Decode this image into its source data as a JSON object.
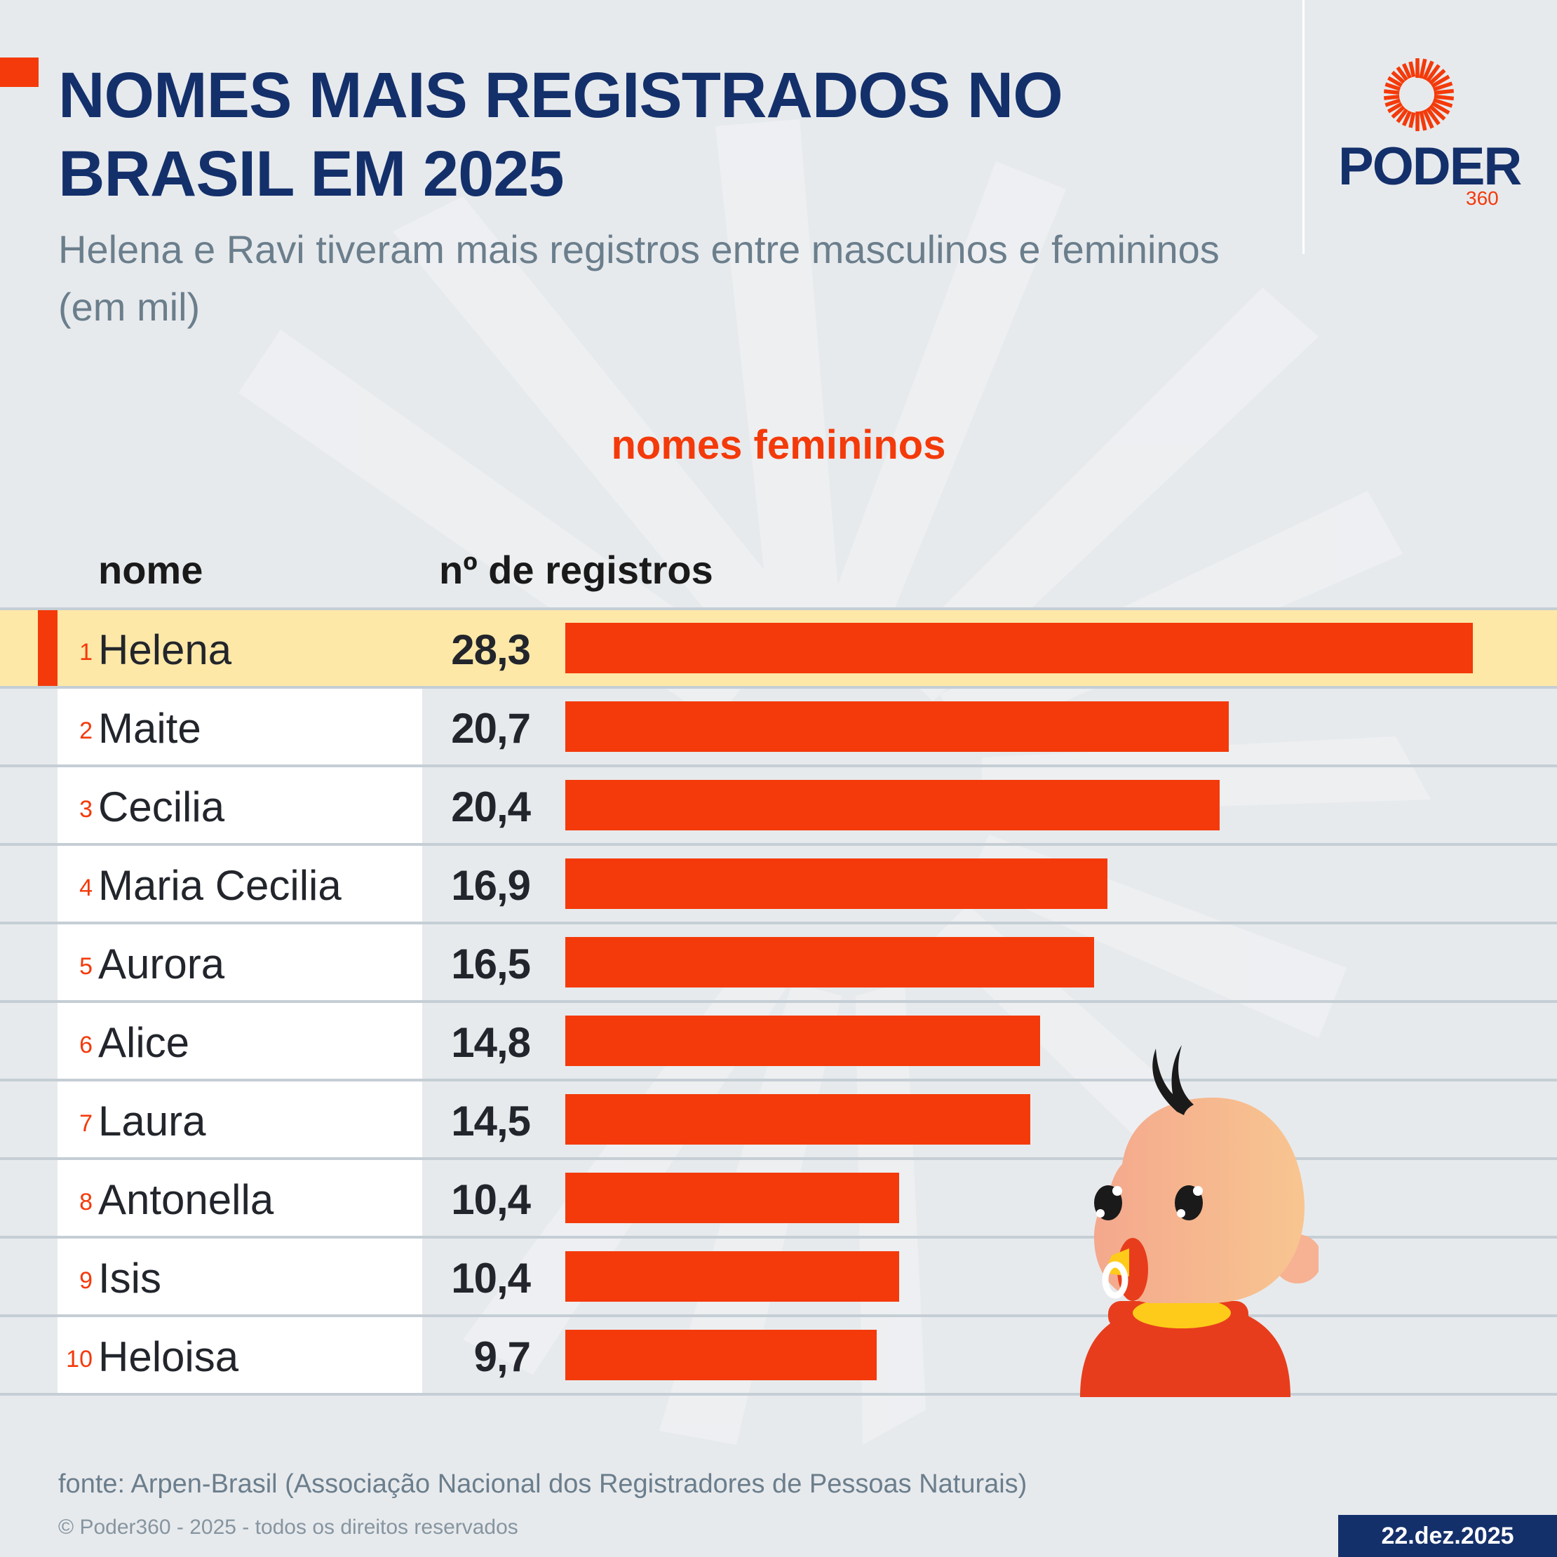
{
  "header": {
    "title": "NOMES MAIS REGISTRADOS NO BRASIL EM 2025",
    "subtitle": "Helena e Ravi tiveram mais registros entre masculinos e femininos (em mil)"
  },
  "logo": {
    "word": "PODER",
    "number": "360",
    "icon": "sun-rays-icon"
  },
  "colors": {
    "brand_navy": "#14306b",
    "accent_orange": "#f43a0a",
    "highlight_row": "#fde8a7",
    "text_gray": "#6b7e8c"
  },
  "section_label": "nomes femininos",
  "columns": {
    "name": "nome",
    "value": "nº de registros"
  },
  "chart_data": {
    "type": "bar",
    "orientation": "horizontal",
    "title": "NOMES MAIS REGISTRADOS NO BRASIL EM 2025",
    "subtitle": "Helena e Ravi tiveram mais registros entre masculinos e femininos (em mil)",
    "series_label": "nomes femininos",
    "xlabel": "nº de registros",
    "ylabel": "nome",
    "unit": "mil",
    "xlim": [
      0,
      28.3
    ],
    "grid": false,
    "legend": "none",
    "highlighted_rank": 1,
    "categories": [
      "Helena",
      "Maite",
      "Cecilia",
      "Maria Cecilia",
      "Aurora",
      "Alice",
      "Laura",
      "Antonella",
      "Isis",
      "Heloisa"
    ],
    "values": [
      28.3,
      20.7,
      20.4,
      16.9,
      16.5,
      14.8,
      14.5,
      10.4,
      10.4,
      9.7
    ],
    "rows": [
      {
        "rank": "1",
        "name": "Helena",
        "value": 28.3,
        "label": "28,3"
      },
      {
        "rank": "2",
        "name": "Maite",
        "value": 20.7,
        "label": "20,7"
      },
      {
        "rank": "3",
        "name": "Cecilia",
        "value": 20.4,
        "label": "20,4"
      },
      {
        "rank": "4",
        "name": "Maria Cecilia",
        "value": 16.9,
        "label": "16,9"
      },
      {
        "rank": "5",
        "name": "Aurora",
        "value": 16.5,
        "label": "16,5"
      },
      {
        "rank": "6",
        "name": "Alice",
        "value": 14.8,
        "label": "14,8"
      },
      {
        "rank": "7",
        "name": "Laura",
        "value": 14.5,
        "label": "14,5"
      },
      {
        "rank": "8",
        "name": "Antonella",
        "value": 10.4,
        "label": "10,4"
      },
      {
        "rank": "9",
        "name": "Isis",
        "value": 10.4,
        "label": "10,4"
      },
      {
        "rank": "10",
        "name": "Heloisa",
        "value": 9.7,
        "label": "9,7"
      }
    ]
  },
  "illustration": "baby-with-pacifier",
  "footer": {
    "source": "fonte: Arpen-Brasil (Associação Nacional dos Registradores de Pessoas Naturais)",
    "copyright": "© Poder360 - 2025 - todos os direitos reservados",
    "date": "22.dez.2025"
  }
}
